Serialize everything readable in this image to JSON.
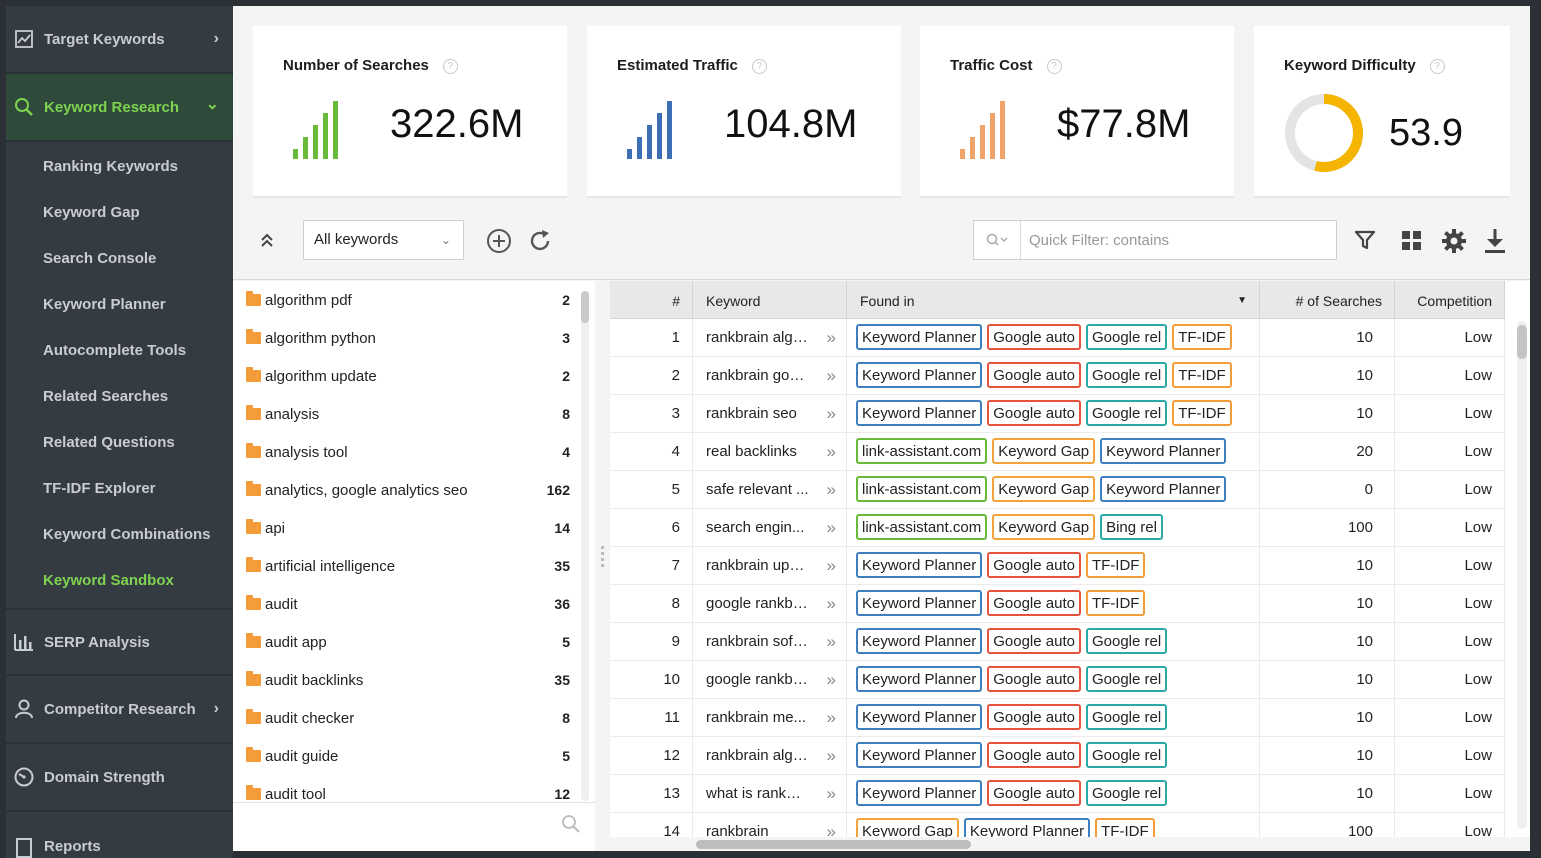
{
  "sidebar": {
    "sections": [
      {
        "label": "Target Keywords",
        "icon": "chart-icon",
        "chevron": "›"
      },
      {
        "label": "Keyword Research",
        "icon": "search-icon",
        "chevron": "⌄"
      },
      {
        "label": "SERP Analysis",
        "icon": "bar-chart-icon"
      },
      {
        "label": "Competitor Research",
        "icon": "user-icon",
        "chevron": "›"
      },
      {
        "label": "Domain Strength",
        "icon": "gauge-icon"
      },
      {
        "label": "Reports",
        "icon": "report-icon"
      }
    ],
    "sub_items": [
      {
        "label": "Ranking Keywords"
      },
      {
        "label": "Keyword Gap"
      },
      {
        "label": "Search Console"
      },
      {
        "label": "Keyword Planner"
      },
      {
        "label": "Autocomplete Tools"
      },
      {
        "label": "Related Searches"
      },
      {
        "label": "Related Questions"
      },
      {
        "label": "TF-IDF Explorer"
      },
      {
        "label": "Keyword Combinations"
      },
      {
        "label": "Keyword Sandbox"
      }
    ],
    "active_section": "Keyword Research",
    "active_sub_item": "Keyword Sandbox",
    "accent_color": "#7dd34f"
  },
  "cards": [
    {
      "title": "Number of Searches",
      "value": "322.6M",
      "color": "#6aba3a",
      "help": "?"
    },
    {
      "title": "Estimated Traffic",
      "value": "104.8M",
      "color": "#3d6fb6",
      "help": "?"
    },
    {
      "title": "Traffic Cost",
      "value": "$77.8M",
      "color": "#f0a46a",
      "help": "?"
    },
    {
      "title": "Keyword Difficulty",
      "value": "53.9",
      "color": "#f5b400",
      "help": "?",
      "gauge_fraction": 0.539
    }
  ],
  "toolbar": {
    "collapse_icon": "double-chevron-up-icon",
    "group_select": "All keywords",
    "add_icon": "plus-circle-icon",
    "refresh_icon": "refresh-icon",
    "quick_filter_placeholder": "Quick Filter: contains",
    "filter_icon": "filter-icon",
    "grid_icon": "grid-icon",
    "settings_icon": "gear-icon",
    "download_icon": "download-icon"
  },
  "groups": [
    {
      "name": "algorithm pdf",
      "count": "2"
    },
    {
      "name": "algorithm python",
      "count": "3"
    },
    {
      "name": "algorithm update",
      "count": "2"
    },
    {
      "name": "analysis",
      "count": "8"
    },
    {
      "name": "analysis tool",
      "count": "4"
    },
    {
      "name": "analytics, google analytics seo",
      "count": "162"
    },
    {
      "name": "api",
      "count": "14"
    },
    {
      "name": "artificial intelligence",
      "count": "35"
    },
    {
      "name": "audit",
      "count": "36"
    },
    {
      "name": "audit app",
      "count": "5"
    },
    {
      "name": "audit backlinks",
      "count": "35"
    },
    {
      "name": "audit checker",
      "count": "8"
    },
    {
      "name": "audit guide",
      "count": "5"
    },
    {
      "name": "audit tool",
      "count": "12"
    }
  ],
  "table": {
    "columns": [
      "#",
      "Keyword",
      "Found in",
      "# of Searches",
      "Competition"
    ],
    "rows": [
      {
        "n": "1",
        "keyword": "rankbrain algo...",
        "found": [
          [
            "Keyword Planner",
            "kp"
          ],
          [
            "Google auto",
            "ga"
          ],
          [
            "Google rel",
            "gr"
          ],
          [
            "TF-IDF",
            "tf"
          ]
        ],
        "searches": "10",
        "competition": "Low"
      },
      {
        "n": "2",
        "keyword": "rankbrain goo...",
        "found": [
          [
            "Keyword Planner",
            "kp"
          ],
          [
            "Google auto",
            "ga"
          ],
          [
            "Google rel",
            "gr"
          ],
          [
            "TF-IDF",
            "tf"
          ]
        ],
        "searches": "10",
        "competition": "Low"
      },
      {
        "n": "3",
        "keyword": "rankbrain seo",
        "found": [
          [
            "Keyword Planner",
            "kp"
          ],
          [
            "Google auto",
            "ga"
          ],
          [
            "Google rel",
            "gr"
          ],
          [
            "TF-IDF",
            "tf"
          ]
        ],
        "searches": "10",
        "competition": "Low"
      },
      {
        "n": "4",
        "keyword": "real backlinks",
        "found": [
          [
            "link-assistant.com",
            "la"
          ],
          [
            "Keyword Gap",
            "kg"
          ],
          [
            "Keyword Planner",
            "kp"
          ]
        ],
        "searches": "20",
        "competition": "Low"
      },
      {
        "n": "5",
        "keyword": "safe relevant ...",
        "found": [
          [
            "link-assistant.com",
            "la"
          ],
          [
            "Keyword Gap",
            "kg"
          ],
          [
            "Keyword Planner",
            "kp"
          ]
        ],
        "searches": "0",
        "competition": "Low"
      },
      {
        "n": "6",
        "keyword": "search engin...",
        "found": [
          [
            "link-assistant.com",
            "la"
          ],
          [
            "Keyword Gap",
            "kg"
          ],
          [
            "Bing rel",
            "br"
          ]
        ],
        "searches": "100",
        "competition": "Low"
      },
      {
        "n": "7",
        "keyword": "rankbrain upd...",
        "found": [
          [
            "Keyword Planner",
            "kp"
          ],
          [
            "Google auto",
            "ga"
          ],
          [
            "TF-IDF",
            "tf"
          ]
        ],
        "searches": "10",
        "competition": "Low"
      },
      {
        "n": "8",
        "keyword": "google rankbr...",
        "found": [
          [
            "Keyword Planner",
            "kp"
          ],
          [
            "Google auto",
            "ga"
          ],
          [
            "TF-IDF",
            "tf"
          ]
        ],
        "searches": "10",
        "competition": "Low"
      },
      {
        "n": "9",
        "keyword": "rankbrain soft...",
        "found": [
          [
            "Keyword Planner",
            "kp"
          ],
          [
            "Google auto",
            "ga"
          ],
          [
            "Google rel",
            "gr"
          ]
        ],
        "searches": "10",
        "competition": "Low"
      },
      {
        "n": "10",
        "keyword": "google rankbr...",
        "found": [
          [
            "Keyword Planner",
            "kp"
          ],
          [
            "Google auto",
            "ga"
          ],
          [
            "Google rel",
            "gr"
          ]
        ],
        "searches": "10",
        "competition": "Low"
      },
      {
        "n": "11",
        "keyword": "rankbrain me...",
        "found": [
          [
            "Keyword Planner",
            "kp"
          ],
          [
            "Google auto",
            "ga"
          ],
          [
            "Google rel",
            "gr"
          ]
        ],
        "searches": "10",
        "competition": "Low"
      },
      {
        "n": "12",
        "keyword": "rankbrain algo...",
        "found": [
          [
            "Keyword Planner",
            "kp"
          ],
          [
            "Google auto",
            "ga"
          ],
          [
            "Google rel",
            "gr"
          ]
        ],
        "searches": "10",
        "competition": "Low"
      },
      {
        "n": "13",
        "keyword": "what is rankbr...",
        "found": [
          [
            "Keyword Planner",
            "kp"
          ],
          [
            "Google auto",
            "ga"
          ],
          [
            "Google rel",
            "gr"
          ]
        ],
        "searches": "10",
        "competition": "Low"
      },
      {
        "n": "14",
        "keyword": "rankbrain",
        "found": [
          [
            "Keyword Gap",
            "kg"
          ],
          [
            "Keyword Planner",
            "kp"
          ],
          [
            "TF-IDF",
            "tf"
          ]
        ],
        "searches": "100",
        "competition": "Low"
      }
    ]
  }
}
